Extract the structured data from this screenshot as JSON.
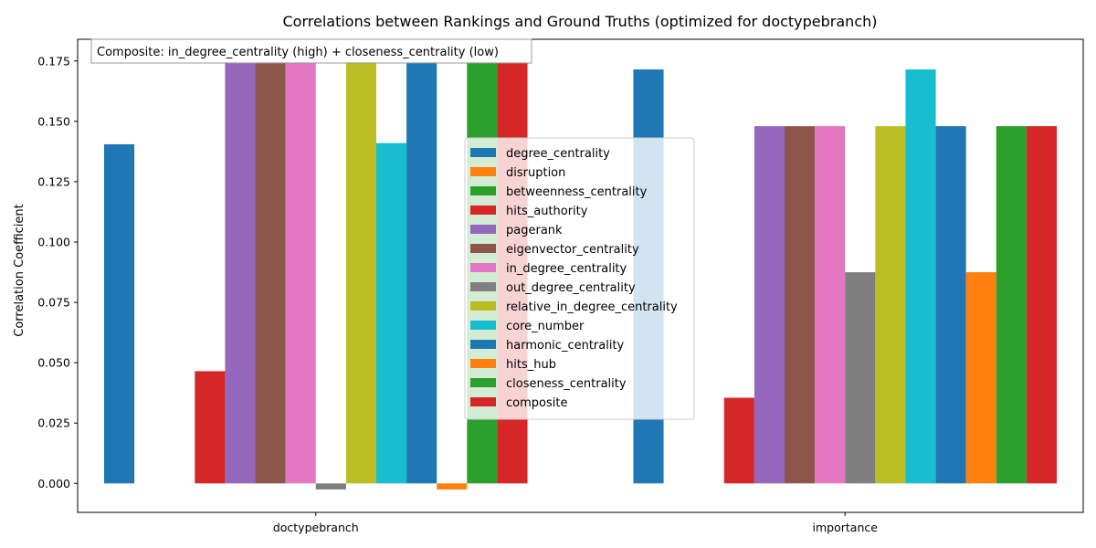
{
  "chart_data": {
    "type": "bar",
    "title": "Correlations between Rankings and Ground Truths (optimized for doctypebranch)",
    "xlabel": "",
    "ylabel": "Correlation Coefficient",
    "annotation": "Composite: in_degree_centrality (high) + closeness_centrality (low)",
    "categories": [
      "doctypebranch",
      "importance"
    ],
    "ylim": [
      -0.012,
      0.184
    ],
    "yticks": [
      0.0,
      0.025,
      0.05,
      0.075,
      0.1,
      0.125,
      0.15,
      0.175
    ],
    "ytick_labels": [
      "0.000",
      "0.025",
      "0.050",
      "0.075",
      "0.100",
      "0.125",
      "0.150",
      "0.175"
    ],
    "grid": false,
    "legend_position": "center",
    "series": [
      {
        "name": "degree_centrality",
        "color": "#1f77b4",
        "values": [
          0.1405,
          0.1715
        ]
      },
      {
        "name": "disruption",
        "color": "#ff7f0e",
        "values": [
          0.0,
          0.0
        ]
      },
      {
        "name": "betweenness_centrality",
        "color": "#2ca02c",
        "values": [
          0.0,
          0.0
        ]
      },
      {
        "name": "hits_authority",
        "color": "#d62728",
        "values": [
          0.0465,
          0.0355
        ]
      },
      {
        "name": "pagerank",
        "color": "#9467bd",
        "values": [
          0.1745,
          0.148
        ]
      },
      {
        "name": "eigenvector_centrality",
        "color": "#8c564b",
        "values": [
          0.1745,
          0.148
        ]
      },
      {
        "name": "in_degree_centrality",
        "color": "#e377c2",
        "values": [
          0.1745,
          0.148
        ]
      },
      {
        "name": "out_degree_centrality",
        "color": "#7f7f7f",
        "values": [
          -0.0025,
          0.0875
        ]
      },
      {
        "name": "relative_in_degree_centrality",
        "color": "#bcbd22",
        "values": [
          0.1745,
          0.148
        ]
      },
      {
        "name": "core_number",
        "color": "#17becf",
        "values": [
          0.141,
          0.1715
        ]
      },
      {
        "name": "harmonic_centrality",
        "color": "#1f77b4",
        "values": [
          0.1745,
          0.148
        ]
      },
      {
        "name": "hits_hub",
        "color": "#ff7f0e",
        "values": [
          -0.0025,
          0.0875
        ]
      },
      {
        "name": "closeness_centrality",
        "color": "#2ca02c",
        "values": [
          0.1745,
          0.148
        ]
      },
      {
        "name": "composite",
        "color": "#d62728",
        "values": [
          0.1745,
          0.148
        ]
      }
    ]
  }
}
